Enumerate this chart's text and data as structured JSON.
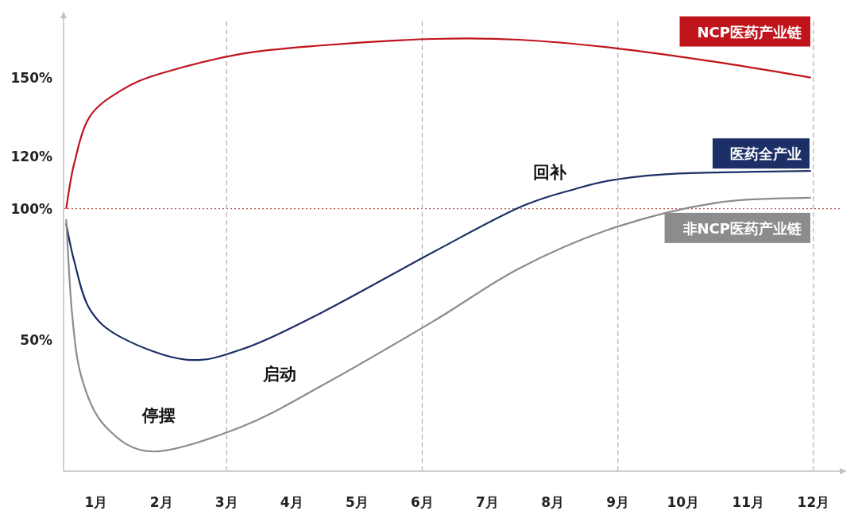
{
  "chart_data": {
    "type": "line",
    "x": [
      0.54,
      0.66,
      0.9,
      1.39,
      2.0,
      3.22,
      4.44,
      6.17,
      7.49,
      8.96,
      10.54,
      11.96
    ],
    "xlim": [
      0.5,
      12.5
    ],
    "xticks": [
      {
        "value": 1,
        "label": "1月"
      },
      {
        "value": 2,
        "label": "2月"
      },
      {
        "value": 3,
        "label": "3月"
      },
      {
        "value": 4,
        "label": "4月"
      },
      {
        "value": 5,
        "label": "5月"
      },
      {
        "value": 6,
        "label": "6月"
      },
      {
        "value": 7,
        "label": "7月"
      },
      {
        "value": 8,
        "label": "8月"
      },
      {
        "value": 9,
        "label": "9月"
      },
      {
        "value": 10,
        "label": "10月"
      },
      {
        "value": 11,
        "label": "11月"
      },
      {
        "value": 12,
        "label": "12月"
      }
    ],
    "ylim": [
      0,
      175
    ],
    "yticks": [
      {
        "value": 50,
        "label": "50%"
      },
      {
        "value": 100,
        "label": "100%"
      },
      {
        "value": 120,
        "label": "120%"
      },
      {
        "value": 150,
        "label": "150%"
      }
    ],
    "series": [
      {
        "name": "NCP医药产业链",
        "color": "#c0141c",
        "values": [
          100,
          116.9,
          135,
          145.2,
          151.6,
          159,
          162.2,
          164.7,
          164.4,
          161.2,
          155.8,
          150
        ]
      },
      {
        "name": "医药全产业",
        "color": "#1c2f66",
        "x": [
          0.54,
          0.66,
          0.9,
          1.39,
          2.37,
          3.22,
          4.44,
          6.17,
          7.49,
          8.34,
          8.96,
          9.93,
          11.96
        ],
        "values": [
          94.4,
          80.4,
          61.8,
          50.9,
          42.5,
          46.3,
          60.2,
          83.5,
          100.5,
          107.5,
          111.1,
          113.4,
          114.4
        ]
      },
      {
        "name": "非NCP医药产业链",
        "color": "#8c8c8c",
        "x": [
          0.54,
          0.63,
          0.78,
          1.15,
          1.88,
          3.22,
          4.44,
          6.17,
          7.49,
          8.96,
          10.54,
          11.96
        ],
        "values": [
          96,
          60.2,
          35.4,
          16.8,
          7.5,
          16.8,
          32.3,
          57.1,
          77.3,
          92.9,
          102.4,
          104.2
        ]
      }
    ],
    "ref_lines": [
      {
        "axis": "y",
        "value": 100,
        "color": "#c0504d",
        "line_style": "dotted"
      },
      {
        "axis": "x",
        "value": 3,
        "color": "#b0b0b0",
        "line_style": "dashed"
      },
      {
        "axis": "x",
        "value": 6,
        "color": "#b0b0b0",
        "line_style": "dashed"
      },
      {
        "axis": "x",
        "value": 9,
        "color": "#b0b0b0",
        "line_style": "dashed"
      },
      {
        "axis": "x",
        "value": 12,
        "color": "#b0b0b0",
        "line_style": "dashed"
      }
    ],
    "annotations": [
      "停摆",
      "启动",
      "回补"
    ],
    "grid": false,
    "legend": false,
    "marker": "none",
    "line_style": "solid"
  }
}
